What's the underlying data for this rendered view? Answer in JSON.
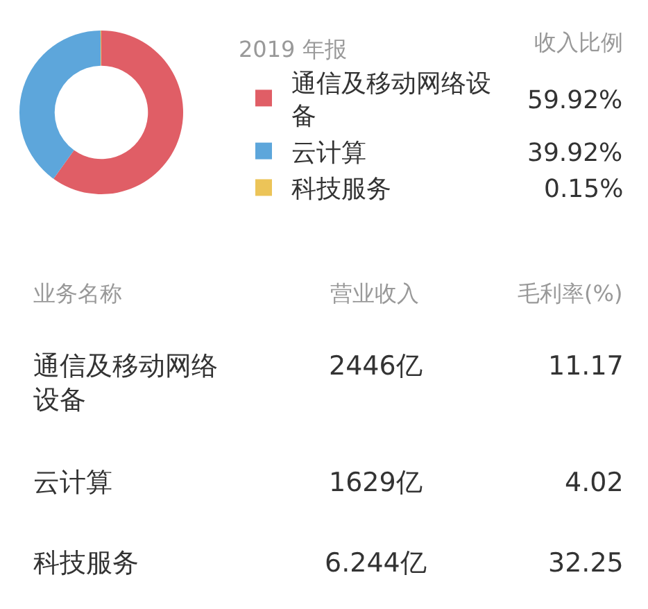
{
  "chart_data": {
    "type": "donut",
    "categories": [
      "通信及移动网络设备",
      "云计算",
      "科技服务"
    ],
    "values": [
      59.92,
      39.92,
      0.15
    ],
    "colors": [
      "#e05e66",
      "#5da6db",
      "#ecc458"
    ],
    "value_labels": [
      "59.92%",
      "39.92%",
      "0.15%"
    ],
    "legend": "right",
    "legend_title": "2019 年报",
    "annotations": [
      "收入比例",
      "业务名称",
      "营业收入",
      "毛利率(%)",
      "通信及移动网络设备",
      "2446亿",
      "11.17",
      "云计算",
      "1629亿",
      "4.02",
      "科技服务",
      "6.244亿",
      "32.25"
    ]
  }
}
